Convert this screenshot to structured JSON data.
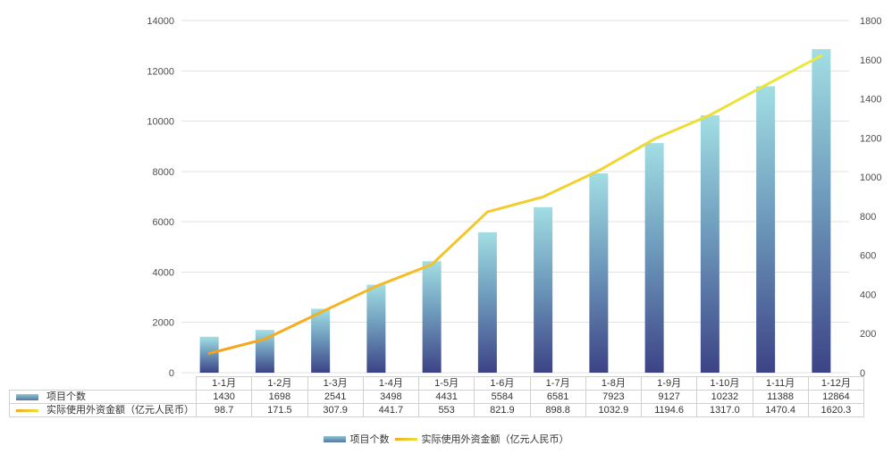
{
  "chart_data": {
    "type": "bar",
    "title": "",
    "categories": [
      "1-1月",
      "1-2月",
      "1-3月",
      "1-4月",
      "1-5月",
      "1-6月",
      "1-7月",
      "1-8月",
      "1-9月",
      "1-10月",
      "1-11月",
      "1-12月"
    ],
    "series": [
      {
        "name": "项目个数",
        "type": "bar",
        "axis": "left",
        "values": [
          "1430",
          "1698",
          "2541",
          "3498",
          "4431",
          "5584",
          "6581",
          "7923",
          "9127",
          "10232",
          "11388",
          "12864"
        ]
      },
      {
        "name": "实际使用外资金额（亿元人民币）",
        "type": "line",
        "axis": "right",
        "values": [
          "98.7",
          "171.5",
          "307.9",
          "441.7",
          "553",
          "821.9",
          "898.8",
          "1032.9",
          "1194.6",
          "1317.0",
          "1470.4",
          "1620.3"
        ]
      }
    ],
    "left_axis": {
      "min": 0,
      "max": 14000,
      "step": 2000
    },
    "right_axis": {
      "min": 0,
      "max": 1800,
      "step": 200
    },
    "grid": true,
    "legend_position": "bottom",
    "colors": {
      "bar_top": "#a2dee3",
      "bar_mid": "#6f9cbd",
      "bar_bottom": "#3c4386",
      "line_start": "#f7a01c",
      "line_mid": "#f3c92c",
      "line_end": "#e9ea3e",
      "gridline": "#e2e2e2",
      "axis_text": "#4d4d4d",
      "table_border": "#d0d0d0",
      "table_text": "#333333"
    }
  }
}
